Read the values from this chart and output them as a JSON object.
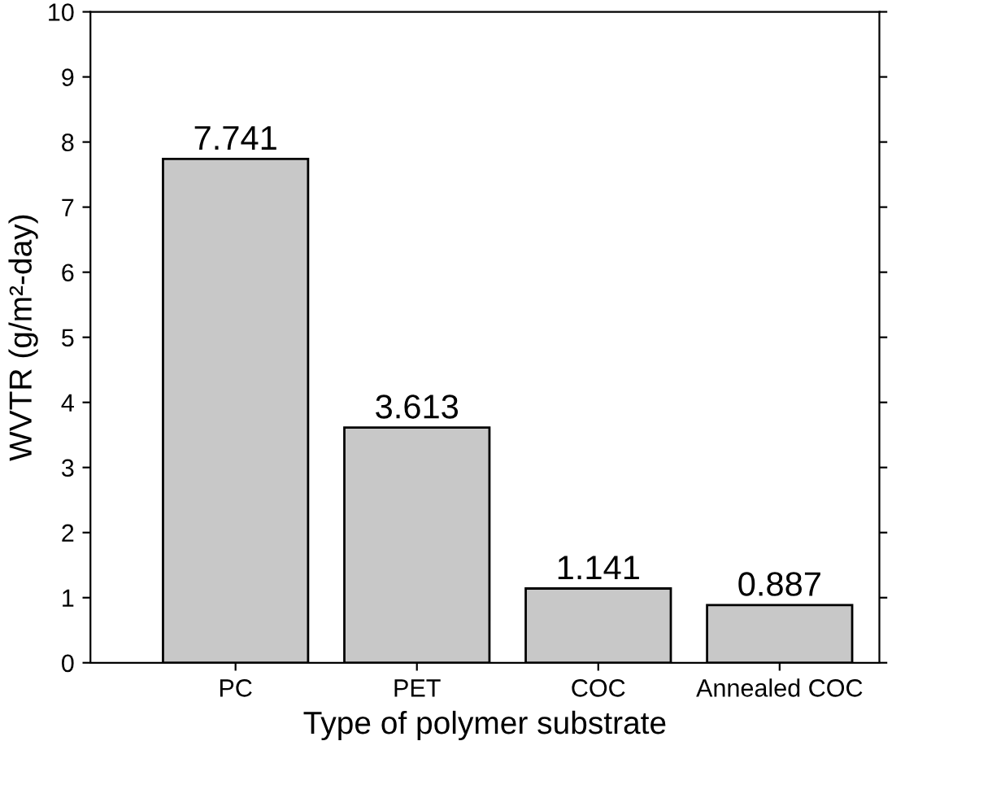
{
  "chart_data": {
    "type": "bar",
    "xlabel": "Type of polymer substrate",
    "ylabel": "WVTR (g/m²-day)",
    "categories": [
      "PC",
      "PET",
      "COC",
      "Annealed COC"
    ],
    "values": [
      7.741,
      3.613,
      1.141,
      0.887
    ],
    "color": "#c8c8c8",
    "ylim": [
      0,
      10
    ],
    "yticks": [
      0,
      1,
      2,
      3,
      4,
      5,
      6,
      7,
      8,
      9,
      10
    ],
    "grid": false,
    "data_labels": true
  }
}
